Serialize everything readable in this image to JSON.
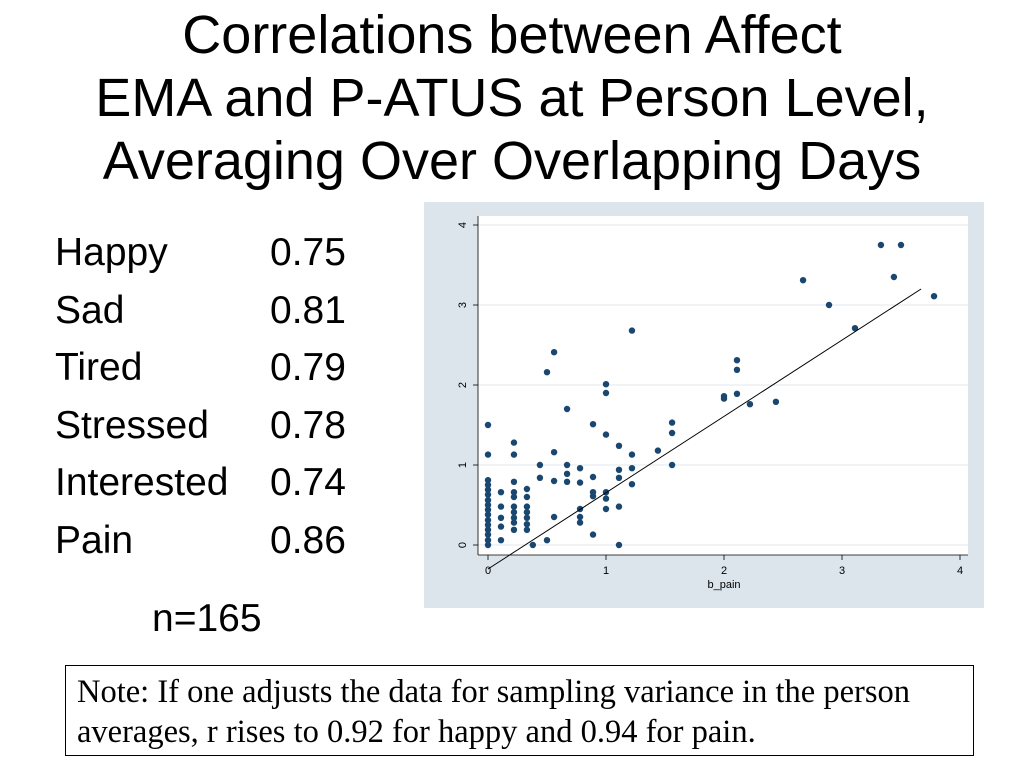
{
  "slide": {
    "title_lines": [
      "Correlations between Affect",
      "EMA and P-ATUS at Person Level,",
      "Averaging Over Overlapping Days"
    ],
    "correlations": [
      {
        "label": "Happy",
        "value": "0.75"
      },
      {
        "label": "Sad",
        "value": "0.81"
      },
      {
        "label": "Tired",
        "value": "0.79"
      },
      {
        "label": "Stressed",
        "value": "0.78"
      },
      {
        "label": "Interested",
        "value": "0.74"
      },
      {
        "label": "Pain",
        "value": "0.86"
      }
    ],
    "sample_size": "n=165",
    "note": "Note: If one adjusts the data for sampling variance in the person averages, r rises to 0.92 for happy and 0.94 for pain."
  },
  "colors": {
    "chart_background": "#dce5ec",
    "plot_background": "#ffffff",
    "marker": "#1a476f",
    "fit_line": "#000000",
    "gridline": "#e0e8ee"
  },
  "chart_data": {
    "type": "scatter",
    "xlabel": "b_pain",
    "xlim": [
      0,
      4
    ],
    "ylim": [
      0,
      4
    ],
    "x_ticks": [
      "0",
      "1",
      "2",
      "3",
      "4"
    ],
    "y_ticks": [
      "0",
      "1",
      "2",
      "3",
      "4"
    ],
    "grid": true,
    "series": [
      {
        "points": [
          [
            0,
            1.5
          ],
          [
            0,
            1.13
          ],
          [
            0,
            0.81
          ],
          [
            0,
            0.75
          ],
          [
            0,
            0.69
          ],
          [
            0,
            0.63
          ],
          [
            0,
            0.56
          ],
          [
            0,
            0.5
          ],
          [
            0,
            0.44
          ],
          [
            0,
            0.38
          ],
          [
            0,
            0.31
          ],
          [
            0,
            0.25
          ],
          [
            0,
            0.19
          ],
          [
            0,
            0.13
          ],
          [
            0,
            0.06
          ],
          [
            0,
            0.0
          ],
          [
            0.11,
            0.66
          ],
          [
            0.11,
            0.48
          ],
          [
            0.11,
            0.34
          ],
          [
            0.11,
            0.23
          ],
          [
            0.11,
            0.06
          ],
          [
            0.22,
            1.28
          ],
          [
            0.22,
            1.13
          ],
          [
            0.22,
            0.79
          ],
          [
            0.22,
            0.66
          ],
          [
            0.22,
            0.6
          ],
          [
            0.22,
            0.48
          ],
          [
            0.22,
            0.41
          ],
          [
            0.22,
            0.34
          ],
          [
            0.22,
            0.28
          ],
          [
            0.22,
            0.19
          ],
          [
            0.33,
            0.7
          ],
          [
            0.33,
            0.6
          ],
          [
            0.33,
            0.48
          ],
          [
            0.33,
            0.41
          ],
          [
            0.33,
            0.34
          ],
          [
            0.33,
            0.26
          ],
          [
            0.33,
            0.19
          ],
          [
            0.38,
            0.0
          ],
          [
            0.44,
            1.0
          ],
          [
            0.44,
            0.84
          ],
          [
            0.5,
            2.16
          ],
          [
            0.5,
            0.06
          ],
          [
            0.56,
            2.41
          ],
          [
            0.56,
            1.16
          ],
          [
            0.56,
            0.8
          ],
          [
            0.56,
            0.35
          ],
          [
            0.67,
            1.7
          ],
          [
            0.67,
            1.0
          ],
          [
            0.67,
            0.89
          ],
          [
            0.67,
            0.79
          ],
          [
            0.78,
            0.96
          ],
          [
            0.78,
            0.78
          ],
          [
            0.78,
            0.45
          ],
          [
            0.78,
            0.35
          ],
          [
            0.78,
            0.28
          ],
          [
            0.89,
            1.51
          ],
          [
            0.89,
            0.85
          ],
          [
            0.89,
            0.66
          ],
          [
            0.89,
            0.61
          ],
          [
            0.89,
            0.13
          ],
          [
            1.0,
            2.01
          ],
          [
            1.0,
            1.9
          ],
          [
            1.0,
            1.38
          ],
          [
            1.0,
            0.66
          ],
          [
            1.0,
            0.58
          ],
          [
            1.0,
            0.45
          ],
          [
            1.11,
            1.24
          ],
          [
            1.11,
            0.94
          ],
          [
            1.11,
            0.84
          ],
          [
            1.11,
            0.48
          ],
          [
            1.11,
            0.0
          ],
          [
            1.22,
            2.68
          ],
          [
            1.22,
            1.13
          ],
          [
            1.22,
            0.96
          ],
          [
            1.22,
            0.76
          ],
          [
            1.44,
            1.18
          ],
          [
            1.56,
            1.53
          ],
          [
            1.56,
            1.4
          ],
          [
            1.56,
            1.0
          ],
          [
            2.0,
            1.86
          ],
          [
            2.0,
            1.83
          ],
          [
            2.11,
            2.31
          ],
          [
            2.11,
            2.19
          ],
          [
            2.11,
            1.89
          ],
          [
            2.22,
            1.76
          ],
          [
            2.44,
            1.79
          ],
          [
            2.67,
            3.31
          ],
          [
            2.89,
            3.0
          ],
          [
            3.11,
            2.71
          ],
          [
            3.33,
            3.75
          ],
          [
            3.44,
            3.35
          ],
          [
            3.5,
            3.75
          ],
          [
            3.78,
            3.11
          ]
        ]
      }
    ],
    "fit_line": {
      "x": [
        0,
        3.67
      ],
      "y": [
        -0.3,
        3.2
      ]
    }
  }
}
